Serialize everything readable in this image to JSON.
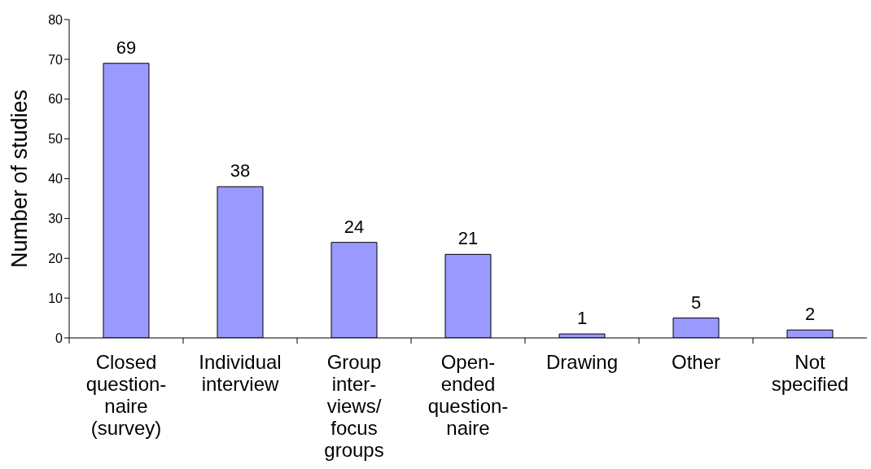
{
  "chart_data": {
    "type": "bar",
    "ylabel": "Number of studies",
    "categories": [
      "Closed\nquestion-\nnaire\n(survey)",
      "Individual\ninterview",
      "Group\ninter-\nviews/\nfocus\ngroups",
      "Open-\nended\nquestion-\nnaire",
      "Drawing",
      "Other",
      "Not\nspecified"
    ],
    "values": [
      69,
      38,
      24,
      21,
      1,
      5,
      2
    ],
    "color": "#9999ff",
    "ylim": [
      0,
      80
    ],
    "yticks": [
      0,
      10,
      20,
      30,
      40,
      50,
      60,
      70,
      80
    ],
    "data_labels": true
  }
}
